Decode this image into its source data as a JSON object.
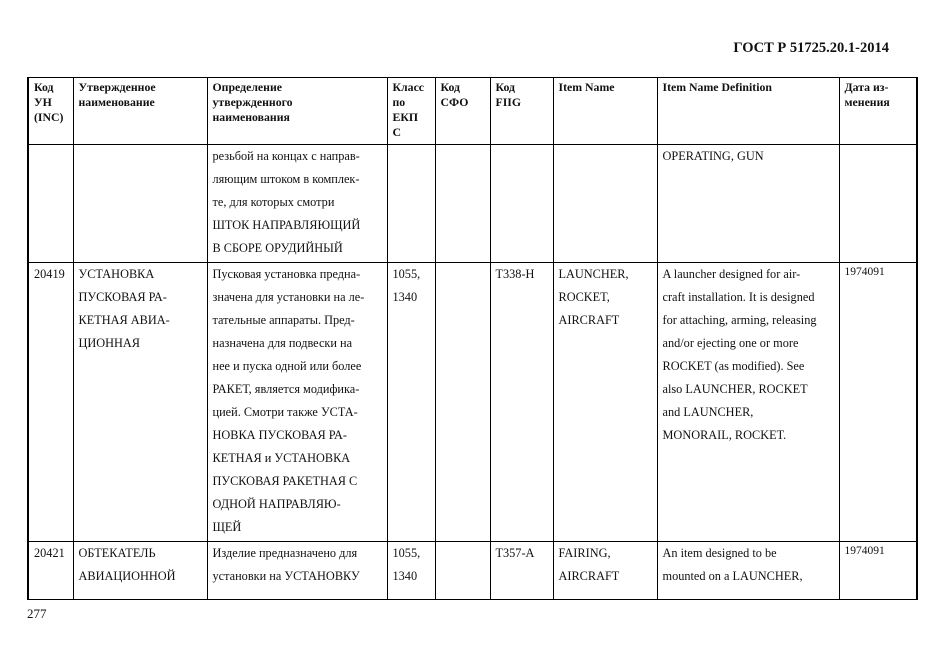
{
  "header": {
    "doc_id": "ГОСТ Р 51725.20.1-2014"
  },
  "table": {
    "columns": [
      "Код\nУН\n(INC)",
      "Утвержденное\nнаименование",
      "Определение\nутвержденного\nнаименования",
      "Класс\nпо\nЕКП\nС",
      "Код\nСФО",
      "Код\nFIIG",
      "Item Name",
      "Item Name Definition",
      "Дата из-\nменения"
    ],
    "rows": [
      [
        "",
        "",
        "резьбой на концах с направ-\nляющим штоком в комплек-\nте, для которых смотри\nШТОК НАПРАВЛЯЮЩИЙ\nВ СБОРЕ ОРУДИЙНЫЙ",
        "",
        "",
        "",
        "",
        "OPERATING, GUN",
        ""
      ],
      [
        "20419",
        "УСТАНОВКА\nПУСКОВАЯ РА-\nКЕТНАЯ АВИА-\nЦИОННАЯ",
        "Пусковая установка предна-\nзначена для установки на ле-\nтательные аппараты. Пред-\nназначена для подвески на\nнее  и пуска одной или более\nРАКЕТ, является модифика-\nцией. Смотри также УСТА-\nНОВКА ПУСКОВАЯ РА-\nКЕТНАЯ и УСТАНОВКА\nПУСКОВАЯ РАКЕТНАЯ С\nОДНОЙ НАПРАВЛЯЮ-\nЩЕЙ",
        "1055,\n1340",
        "",
        "T338-H",
        "LAUNCHER,\nROCKET,\nAIRCRAFT",
        "A launcher designed for air-\ncraft installation. It is designed\nfor attaching, arming, releasing\nand/or ejecting one or more\nROCKET (as modified). See\nalso LAUNCHER, ROCKET\nand LAUNCHER,\nMONORAIL, ROCKET.",
        "1974091"
      ],
      [
        "20421",
        "ОБТЕКАТЕЛЬ\nАВИАЦИОННОЙ",
        "Изделие предназначено для\nустановки на УСТАНОВКУ",
        "1055,\n1340",
        "",
        "T357-A",
        "FAIRING,\nAIRCRAFT",
        "An item designed to be\nmounted on a LAUNCHER,",
        "1974091"
      ]
    ]
  },
  "footer": {
    "page_number": "277"
  }
}
